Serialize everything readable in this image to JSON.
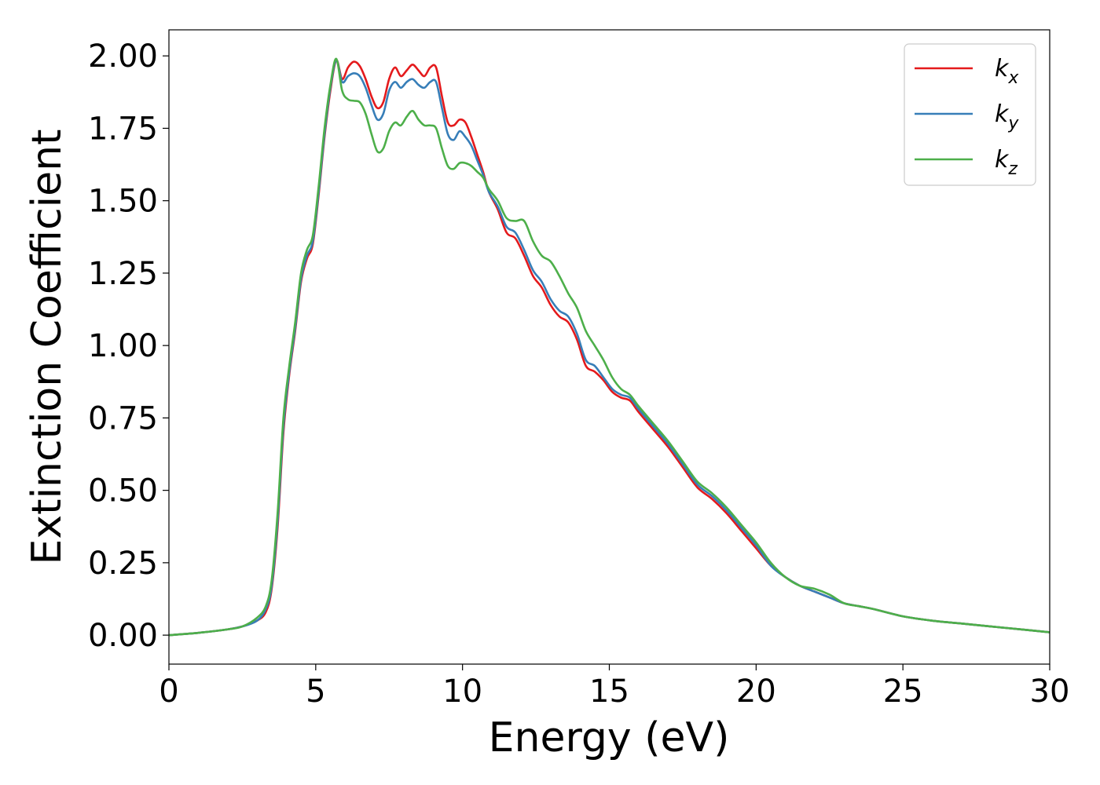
{
  "chart_data": {
    "type": "line",
    "title": "",
    "xlabel": "Energy (eV)",
    "ylabel": "Extinction Coefficient",
    "xlim": [
      0,
      30
    ],
    "ylim": [
      -0.1,
      2.09
    ],
    "xticks": [
      "0",
      "5",
      "10",
      "15",
      "20",
      "25",
      "30"
    ],
    "yticks": [
      "0.00",
      "0.25",
      "0.50",
      "0.75",
      "1.00",
      "1.25",
      "1.50",
      "1.75",
      "2.00"
    ],
    "grid": false,
    "legend_position": "top-right",
    "x": [
      0,
      1,
      2,
      2.5,
      3,
      3.3,
      3.5,
      3.7,
      3.9,
      4.1,
      4.3,
      4.5,
      4.7,
      4.9,
      5.1,
      5.3,
      5.5,
      5.7,
      5.9,
      6.1,
      6.3,
      6.5,
      6.7,
      6.9,
      7.1,
      7.3,
      7.5,
      7.7,
      7.9,
      8.1,
      8.3,
      8.5,
      8.7,
      8.9,
      9.1,
      9.3,
      9.5,
      9.7,
      9.9,
      10.1,
      10.3,
      10.5,
      10.7,
      10.9,
      11.2,
      11.5,
      11.8,
      12.1,
      12.4,
      12.7,
      13.0,
      13.3,
      13.6,
      13.9,
      14.2,
      14.5,
      14.8,
      15.1,
      15.4,
      15.7,
      16.0,
      16.5,
      17.0,
      17.5,
      18.0,
      18.5,
      19.0,
      19.5,
      20.0,
      20.5,
      21.0,
      21.5,
      22.0,
      22.5,
      23.0,
      23.5,
      24.0,
      25.0,
      26.0,
      27.0,
      28.0,
      29.0,
      30.0
    ],
    "series": [
      {
        "name": "k_x",
        "label_base": "k",
        "label_sub": "x",
        "color": "#e41a1c",
        "values": [
          0.0,
          0.008,
          0.02,
          0.03,
          0.05,
          0.08,
          0.16,
          0.37,
          0.7,
          0.9,
          1.05,
          1.22,
          1.3,
          1.35,
          1.52,
          1.72,
          1.88,
          1.985,
          1.92,
          1.96,
          1.98,
          1.965,
          1.92,
          1.86,
          1.82,
          1.84,
          1.92,
          1.96,
          1.93,
          1.95,
          1.97,
          1.95,
          1.93,
          1.96,
          1.96,
          1.86,
          1.77,
          1.76,
          1.78,
          1.77,
          1.72,
          1.66,
          1.6,
          1.53,
          1.47,
          1.39,
          1.37,
          1.31,
          1.24,
          1.2,
          1.14,
          1.1,
          1.08,
          1.02,
          0.93,
          0.91,
          0.88,
          0.84,
          0.82,
          0.81,
          0.77,
          0.71,
          0.65,
          0.58,
          0.51,
          0.47,
          0.42,
          0.36,
          0.3,
          0.24,
          0.2,
          0.17,
          0.15,
          0.13,
          0.11,
          0.1,
          0.09,
          0.065,
          0.05,
          0.04,
          0.03,
          0.02,
          0.01
        ]
      },
      {
        "name": "k_y",
        "label_base": "k",
        "label_sub": "y",
        "color": "#377eb8",
        "values": [
          0.0,
          0.008,
          0.02,
          0.03,
          0.05,
          0.09,
          0.17,
          0.39,
          0.72,
          0.91,
          1.06,
          1.23,
          1.31,
          1.36,
          1.53,
          1.73,
          1.89,
          1.985,
          1.91,
          1.93,
          1.94,
          1.93,
          1.89,
          1.83,
          1.78,
          1.8,
          1.88,
          1.91,
          1.89,
          1.91,
          1.92,
          1.9,
          1.89,
          1.91,
          1.91,
          1.82,
          1.73,
          1.71,
          1.74,
          1.72,
          1.69,
          1.64,
          1.59,
          1.53,
          1.48,
          1.41,
          1.39,
          1.33,
          1.26,
          1.22,
          1.16,
          1.12,
          1.1,
          1.04,
          0.95,
          0.93,
          0.89,
          0.85,
          0.83,
          0.82,
          0.78,
          0.72,
          0.66,
          0.59,
          0.52,
          0.48,
          0.43,
          0.37,
          0.31,
          0.24,
          0.2,
          0.17,
          0.15,
          0.13,
          0.11,
          0.1,
          0.09,
          0.065,
          0.05,
          0.04,
          0.03,
          0.02,
          0.01
        ]
      },
      {
        "name": "k_z",
        "label_base": "k",
        "label_sub": "z",
        "color": "#4daf4a",
        "values": [
          0.0,
          0.008,
          0.02,
          0.03,
          0.06,
          0.1,
          0.19,
          0.42,
          0.75,
          0.93,
          1.08,
          1.25,
          1.33,
          1.38,
          1.55,
          1.75,
          1.9,
          1.99,
          1.88,
          1.85,
          1.845,
          1.84,
          1.8,
          1.73,
          1.67,
          1.68,
          1.74,
          1.77,
          1.76,
          1.79,
          1.81,
          1.78,
          1.76,
          1.76,
          1.75,
          1.68,
          1.62,
          1.61,
          1.63,
          1.63,
          1.62,
          1.6,
          1.58,
          1.54,
          1.5,
          1.44,
          1.43,
          1.43,
          1.36,
          1.31,
          1.29,
          1.24,
          1.18,
          1.13,
          1.05,
          1.0,
          0.95,
          0.89,
          0.85,
          0.83,
          0.79,
          0.73,
          0.67,
          0.6,
          0.53,
          0.49,
          0.44,
          0.38,
          0.32,
          0.25,
          0.2,
          0.17,
          0.16,
          0.14,
          0.11,
          0.1,
          0.09,
          0.065,
          0.05,
          0.04,
          0.03,
          0.02,
          0.01
        ]
      }
    ]
  }
}
